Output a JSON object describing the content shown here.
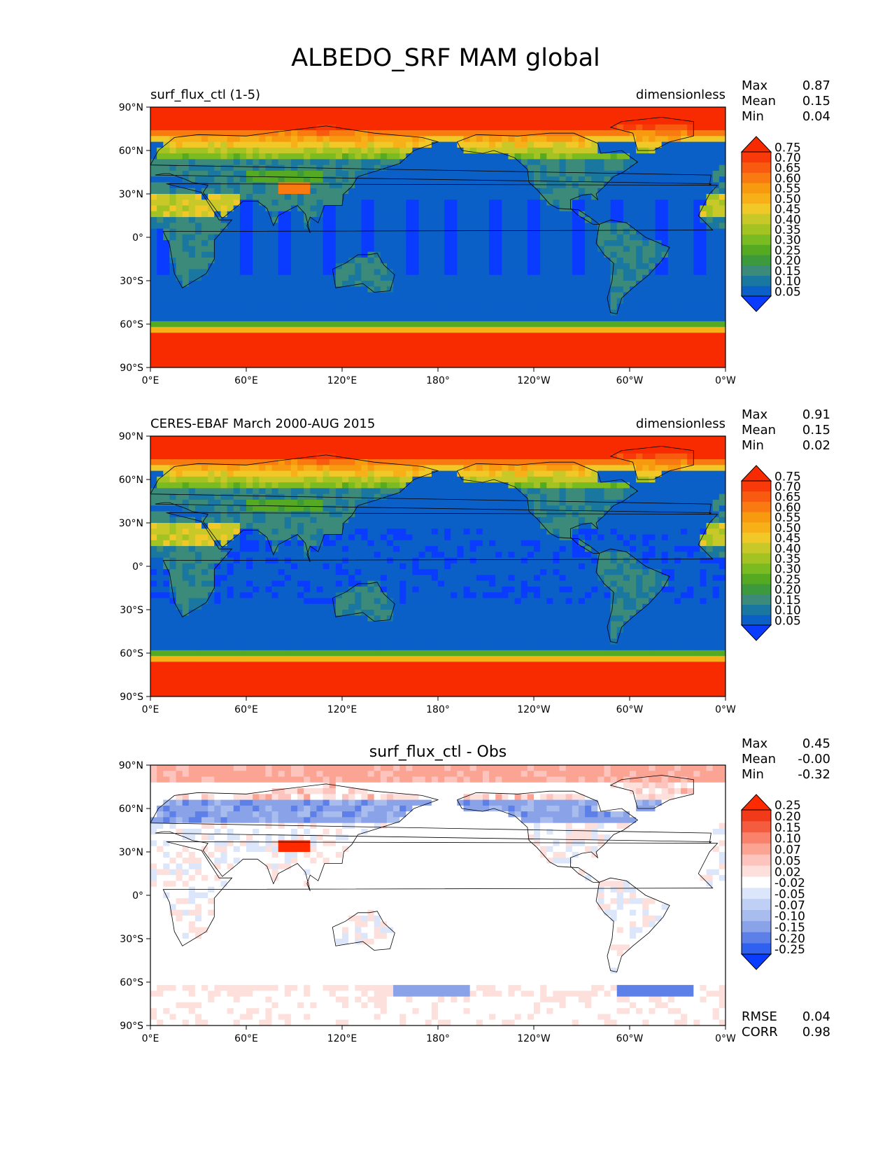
{
  "figure_title": "ALBEDO_SRF MAM global",
  "chart_data": [
    {
      "type": "heatmap",
      "left_title": "surf_flux_ctl (1-5)",
      "center_title": "",
      "right_title": "dimensionless",
      "stats": [
        {
          "label": "Max",
          "value": "0.87"
        },
        {
          "label": "Mean",
          "value": "0.15"
        },
        {
          "label": "Min",
          "value": "0.04"
        }
      ],
      "extra_stats": [],
      "colorbar": {
        "labels": [
          "0.05",
          "0.10",
          "0.15",
          "0.20",
          "0.25",
          "0.30",
          "0.35",
          "0.40",
          "0.45",
          "0.50",
          "0.55",
          "0.60",
          "0.65",
          "0.70",
          "0.75"
        ],
        "colors": [
          "#0a3cff",
          "#0b60c8",
          "#1a78a0",
          "#3b8a7a",
          "#3c9a3c",
          "#55aa22",
          "#7bbb22",
          "#a3c322",
          "#c8c828",
          "#f0c828",
          "#f8b018",
          "#f89a10",
          "#f87a10",
          "#f85a10",
          "#f83a0a",
          "#f82a00"
        ],
        "extend": "both"
      },
      "xticks": [
        "0°E",
        "60°E",
        "120°E",
        "180°",
        "120°W",
        "60°W",
        "0°W"
      ],
      "yticks": [
        "90°N",
        "60°N",
        "30°N",
        "0°",
        "30°S",
        "60°S",
        "90°S"
      ],
      "field": "model"
    },
    {
      "type": "heatmap",
      "left_title": "CERES-EBAF March 2000-AUG 2015",
      "center_title": "",
      "right_title": "dimensionless",
      "stats": [
        {
          "label": "Max",
          "value": "0.91"
        },
        {
          "label": "Mean",
          "value": "0.15"
        },
        {
          "label": "Min",
          "value": "0.02"
        }
      ],
      "extra_stats": [],
      "colorbar": {
        "labels": [
          "0.05",
          "0.10",
          "0.15",
          "0.20",
          "0.25",
          "0.30",
          "0.35",
          "0.40",
          "0.45",
          "0.50",
          "0.55",
          "0.60",
          "0.65",
          "0.70",
          "0.75"
        ],
        "colors": [
          "#0a3cff",
          "#0b60c8",
          "#1a78a0",
          "#3b8a7a",
          "#3c9a3c",
          "#55aa22",
          "#7bbb22",
          "#a3c322",
          "#c8c828",
          "#f0c828",
          "#f8b018",
          "#f89a10",
          "#f87a10",
          "#f85a10",
          "#f83a0a",
          "#f82a00"
        ],
        "extend": "both"
      },
      "xticks": [
        "0°E",
        "60°E",
        "120°E",
        "180°",
        "120°W",
        "60°W",
        "0°W"
      ],
      "yticks": [
        "90°N",
        "60°N",
        "30°N",
        "0°",
        "30°S",
        "60°S",
        "90°S"
      ],
      "field": "obs"
    },
    {
      "type": "heatmap",
      "left_title": "",
      "center_title": "surf_flux_ctl - Obs",
      "right_title": "",
      "stats": [
        {
          "label": "Max",
          "value": "0.45"
        },
        {
          "label": "Mean",
          "value": "-0.00"
        },
        {
          "label": "Min",
          "value": "-0.32"
        }
      ],
      "extra_stats": [
        {
          "label": "RMSE",
          "value": "0.04"
        },
        {
          "label": "CORR",
          "value": "0.98"
        }
      ],
      "colorbar": {
        "labels": [
          "-0.25",
          "-0.20",
          "-0.15",
          "-0.10",
          "-0.07",
          "-0.05",
          "-0.02",
          "0.02",
          "0.05",
          "0.07",
          "0.10",
          "0.15",
          "0.20",
          "0.25"
        ],
        "colors": [
          "#0a3cff",
          "#3060f0",
          "#5c80e8",
          "#8aa2e8",
          "#a8bcee",
          "#c0d0f4",
          "#dce6fa",
          "#ffffff",
          "#fde0dc",
          "#fcc4bc",
          "#fba494",
          "#f8826c",
          "#f45c40",
          "#f03a1a",
          "#ff2a00"
        ],
        "extend": "both"
      },
      "xticks": [
        "0°E",
        "60°E",
        "120°E",
        "180°",
        "120°W",
        "60°W",
        "0°W"
      ],
      "yticks": [
        "90°N",
        "60°N",
        "30°N",
        "0°",
        "30°S",
        "60°S",
        "90°S"
      ],
      "field": "diff"
    }
  ]
}
